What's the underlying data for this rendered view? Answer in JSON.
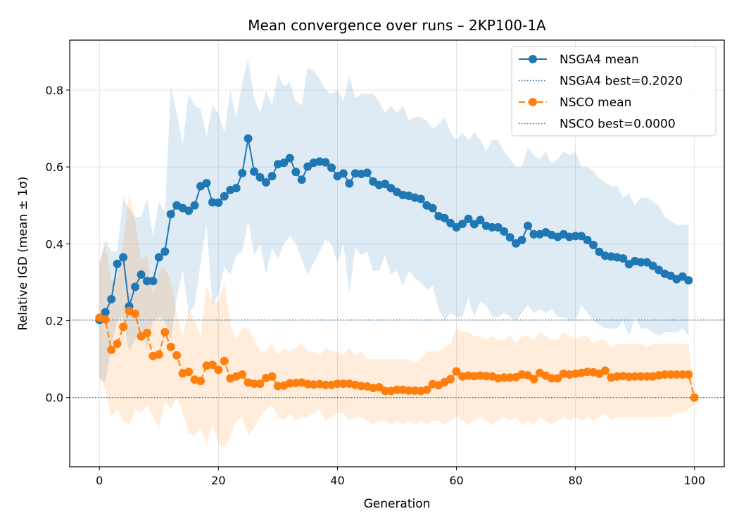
{
  "chart_data": {
    "type": "line",
    "title": "Mean convergence over runs – 2KP100-1A",
    "xlabel": "Generation",
    "ylabel": "Relative IGD (mean ± 1σ)",
    "xlim": [
      -5,
      105
    ],
    "ylim": [
      -0.18,
      0.93
    ],
    "xticks": [
      0,
      20,
      40,
      60,
      80,
      100
    ],
    "yticks": [
      0.0,
      0.2,
      0.4,
      0.6,
      0.8
    ],
    "ytick_labels": [
      "0.0",
      "0.2",
      "0.4",
      "0.6",
      "0.8"
    ],
    "grid": true,
    "legend_position": "top-right",
    "series": [
      {
        "name": "NSGA4 mean",
        "color": "#1f77b4",
        "style": "solid",
        "x": [
          0,
          1,
          2,
          3,
          4,
          5,
          6,
          7,
          8,
          9,
          10,
          11,
          12,
          13,
          14,
          15,
          16,
          17,
          18,
          19,
          20,
          21,
          22,
          23,
          24,
          25,
          26,
          27,
          28,
          29,
          30,
          31,
          32,
          33,
          34,
          35,
          36,
          37,
          38,
          39,
          40,
          41,
          42,
          43,
          44,
          45,
          46,
          47,
          48,
          49,
          50,
          51,
          52,
          53,
          54,
          55,
          56,
          57,
          58,
          59,
          60,
          61,
          62,
          63,
          64,
          65,
          66,
          67,
          68,
          69,
          70,
          71,
          72,
          73,
          74,
          75,
          76,
          77,
          78,
          79,
          80,
          81,
          82,
          83,
          84,
          85,
          86,
          87,
          88,
          89,
          90,
          91,
          92,
          93,
          94,
          95,
          96,
          97,
          98,
          99
        ],
        "values": [
          0.202,
          0.222,
          0.256,
          0.348,
          0.365,
          0.237,
          0.288,
          0.32,
          0.303,
          0.303,
          0.365,
          0.38,
          0.477,
          0.5,
          0.493,
          0.486,
          0.5,
          0.55,
          0.558,
          0.508,
          0.507,
          0.524,
          0.54,
          0.545,
          0.584,
          0.674,
          0.588,
          0.573,
          0.56,
          0.576,
          0.607,
          0.611,
          0.623,
          0.587,
          0.567,
          0.601,
          0.611,
          0.614,
          0.612,
          0.598,
          0.576,
          0.583,
          0.557,
          0.583,
          0.582,
          0.585,
          0.562,
          0.553,
          0.556,
          0.545,
          0.535,
          0.527,
          0.525,
          0.52,
          0.517,
          0.5,
          0.493,
          0.472,
          0.467,
          0.454,
          0.443,
          0.452,
          0.465,
          0.451,
          0.462,
          0.447,
          0.443,
          0.443,
          0.432,
          0.417,
          0.401,
          0.41,
          0.447,
          0.425,
          0.425,
          0.43,
          0.423,
          0.418,
          0.425,
          0.418,
          0.42,
          0.42,
          0.41,
          0.397,
          0.379,
          0.369,
          0.367,
          0.365,
          0.362,
          0.347,
          0.355,
          0.352,
          0.352,
          0.343,
          0.332,
          0.322,
          0.317,
          0.308,
          0.315,
          0.305
        ],
        "upper": [
          0.35,
          0.41,
          0.38,
          0.38,
          0.52,
          0.49,
          0.47,
          0.47,
          0.52,
          0.42,
          0.51,
          0.48,
          0.81,
          0.74,
          0.66,
          0.79,
          0.76,
          0.75,
          0.68,
          0.76,
          0.74,
          0.69,
          0.8,
          0.73,
          0.82,
          0.88,
          0.78,
          0.74,
          0.8,
          0.76,
          0.84,
          0.81,
          0.82,
          0.77,
          0.76,
          0.86,
          0.85,
          0.83,
          0.8,
          0.79,
          0.8,
          0.77,
          0.84,
          0.78,
          0.79,
          0.79,
          0.79,
          0.77,
          0.74,
          0.76,
          0.74,
          0.76,
          0.72,
          0.73,
          0.73,
          0.72,
          0.7,
          0.71,
          0.73,
          0.69,
          0.67,
          0.69,
          0.67,
          0.69,
          0.67,
          0.64,
          0.67,
          0.67,
          0.64,
          0.62,
          0.6,
          0.6,
          0.65,
          0.63,
          0.62,
          0.64,
          0.61,
          0.62,
          0.64,
          0.63,
          0.64,
          0.6,
          0.6,
          0.59,
          0.57,
          0.56,
          0.55,
          0.55,
          0.52,
          0.53,
          0.5,
          0.52,
          0.52,
          0.51,
          0.5,
          0.47,
          0.46,
          0.45,
          0.45,
          0.45
        ],
        "lower": [
          0.05,
          0.04,
          0.13,
          0.2,
          0.21,
          0.12,
          0.15,
          0.17,
          0.13,
          0.2,
          0.21,
          0.2,
          0.15,
          0.26,
          0.33,
          0.22,
          0.24,
          0.35,
          0.45,
          0.24,
          0.27,
          0.34,
          0.32,
          0.37,
          0.38,
          0.46,
          0.37,
          0.4,
          0.32,
          0.39,
          0.36,
          0.4,
          0.42,
          0.4,
          0.36,
          0.32,
          0.35,
          0.38,
          0.41,
          0.4,
          0.35,
          0.4,
          0.27,
          0.39,
          0.37,
          0.38,
          0.33,
          0.33,
          0.37,
          0.32,
          0.33,
          0.29,
          0.33,
          0.31,
          0.3,
          0.28,
          0.29,
          0.23,
          0.2,
          0.22,
          0.21,
          0.21,
          0.26,
          0.21,
          0.25,
          0.24,
          0.21,
          0.21,
          0.22,
          0.21,
          0.2,
          0.22,
          0.24,
          0.22,
          0.23,
          0.22,
          0.23,
          0.21,
          0.21,
          0.2,
          0.2,
          0.24,
          0.22,
          0.2,
          0.19,
          0.18,
          0.18,
          0.18,
          0.2,
          0.16,
          0.21,
          0.18,
          0.18,
          0.17,
          0.16,
          0.17,
          0.17,
          0.17,
          0.18,
          0.16
        ]
      },
      {
        "name": "NSGA4 best=0.2020",
        "color": "#1f77b4",
        "style": "dotted",
        "hline": 0.202
      },
      {
        "name": "NSCO mean",
        "color": "#ff7f0e",
        "style": "dashed",
        "x": [
          0,
          1,
          2,
          3,
          4,
          5,
          6,
          7,
          8,
          9,
          10,
          11,
          12,
          13,
          14,
          15,
          16,
          17,
          18,
          19,
          20,
          21,
          22,
          23,
          24,
          25,
          26,
          27,
          28,
          29,
          30,
          31,
          32,
          33,
          34,
          35,
          36,
          37,
          38,
          39,
          40,
          41,
          42,
          43,
          44,
          45,
          46,
          47,
          48,
          49,
          50,
          51,
          52,
          53,
          54,
          55,
          56,
          57,
          58,
          59,
          60,
          61,
          62,
          63,
          64,
          65,
          66,
          67,
          68,
          69,
          70,
          71,
          72,
          73,
          74,
          75,
          76,
          77,
          78,
          79,
          80,
          81,
          82,
          83,
          84,
          85,
          86,
          87,
          88,
          89,
          90,
          91,
          92,
          93,
          94,
          95,
          96,
          97,
          98,
          99,
          100
        ],
        "values": [
          0.208,
          0.203,
          0.124,
          0.14,
          0.184,
          0.225,
          0.218,
          0.159,
          0.168,
          0.108,
          0.112,
          0.17,
          0.132,
          0.11,
          0.063,
          0.067,
          0.047,
          0.043,
          0.083,
          0.085,
          0.072,
          0.095,
          0.05,
          0.055,
          0.06,
          0.039,
          0.036,
          0.036,
          0.051,
          0.055,
          0.03,
          0.031,
          0.037,
          0.038,
          0.039,
          0.035,
          0.034,
          0.035,
          0.033,
          0.033,
          0.036,
          0.036,
          0.036,
          0.033,
          0.03,
          0.029,
          0.025,
          0.027,
          0.017,
          0.017,
          0.02,
          0.02,
          0.018,
          0.018,
          0.017,
          0.02,
          0.035,
          0.032,
          0.04,
          0.048,
          0.068,
          0.055,
          0.057,
          0.056,
          0.057,
          0.056,
          0.055,
          0.05,
          0.052,
          0.052,
          0.053,
          0.06,
          0.058,
          0.048,
          0.064,
          0.057,
          0.05,
          0.05,
          0.062,
          0.06,
          0.062,
          0.064,
          0.067,
          0.066,
          0.062,
          0.07,
          0.052,
          0.055,
          0.056,
          0.054,
          0.055,
          0.055,
          0.055,
          0.055,
          0.058,
          0.06,
          0.06,
          0.06,
          0.06,
          0.06,
          0.0
        ],
        "upper": [
          0.35,
          0.4,
          0.3,
          0.31,
          0.4,
          0.53,
          0.46,
          0.36,
          0.37,
          0.27,
          0.33,
          0.34,
          0.3,
          0.22,
          0.16,
          0.23,
          0.2,
          0.16,
          0.29,
          0.25,
          0.25,
          0.3,
          0.19,
          0.15,
          0.18,
          0.18,
          0.15,
          0.12,
          0.12,
          0.14,
          0.11,
          0.13,
          0.12,
          0.13,
          0.14,
          0.12,
          0.12,
          0.11,
          0.13,
          0.12,
          0.12,
          0.11,
          0.13,
          0.11,
          0.12,
          0.1,
          0.1,
          0.1,
          0.1,
          0.1,
          0.1,
          0.1,
          0.1,
          0.09,
          0.1,
          0.12,
          0.12,
          0.12,
          0.13,
          0.14,
          0.18,
          0.17,
          0.17,
          0.16,
          0.16,
          0.15,
          0.16,
          0.15,
          0.15,
          0.16,
          0.14,
          0.16,
          0.16,
          0.15,
          0.17,
          0.16,
          0.15,
          0.15,
          0.17,
          0.16,
          0.15,
          0.16,
          0.16,
          0.14,
          0.15,
          0.15,
          0.13,
          0.14,
          0.14,
          0.14,
          0.14,
          0.14,
          0.13,
          0.14,
          0.14,
          0.14,
          0.14,
          0.14,
          0.14,
          0.14,
          0.02
        ],
        "lower": [
          0.05,
          0.02,
          -0.05,
          -0.03,
          -0.06,
          -0.07,
          -0.03,
          -0.04,
          -0.02,
          -0.05,
          -0.08,
          -0.01,
          -0.03,
          0.0,
          -0.04,
          -0.09,
          -0.1,
          -0.08,
          -0.12,
          -0.07,
          -0.12,
          -0.13,
          -0.1,
          -0.06,
          -0.05,
          -0.1,
          -0.08,
          -0.05,
          -0.03,
          -0.02,
          -0.05,
          -0.06,
          -0.04,
          -0.06,
          -0.05,
          -0.05,
          -0.04,
          -0.03,
          -0.06,
          -0.05,
          -0.04,
          -0.04,
          -0.06,
          -0.05,
          -0.05,
          -0.06,
          -0.07,
          -0.06,
          -0.06,
          -0.07,
          -0.06,
          -0.07,
          -0.06,
          -0.07,
          -0.06,
          -0.07,
          -0.06,
          -0.06,
          -0.07,
          -0.06,
          -0.05,
          -0.06,
          -0.07,
          -0.06,
          -0.05,
          -0.06,
          -0.07,
          -0.06,
          -0.05,
          -0.06,
          -0.05,
          -0.07,
          -0.06,
          -0.07,
          -0.05,
          -0.06,
          -0.07,
          -0.06,
          -0.05,
          -0.06,
          -0.05,
          -0.06,
          -0.05,
          -0.06,
          -0.05,
          -0.04,
          -0.06,
          -0.05,
          -0.05,
          -0.05,
          -0.05,
          -0.05,
          -0.05,
          -0.05,
          -0.05,
          -0.05,
          -0.05,
          -0.04,
          -0.04,
          -0.03,
          -0.02
        ]
      },
      {
        "name": "NSCO best=0.0000",
        "color": "#1f77b4",
        "style": "dotted",
        "hline": 0.0
      }
    ]
  }
}
